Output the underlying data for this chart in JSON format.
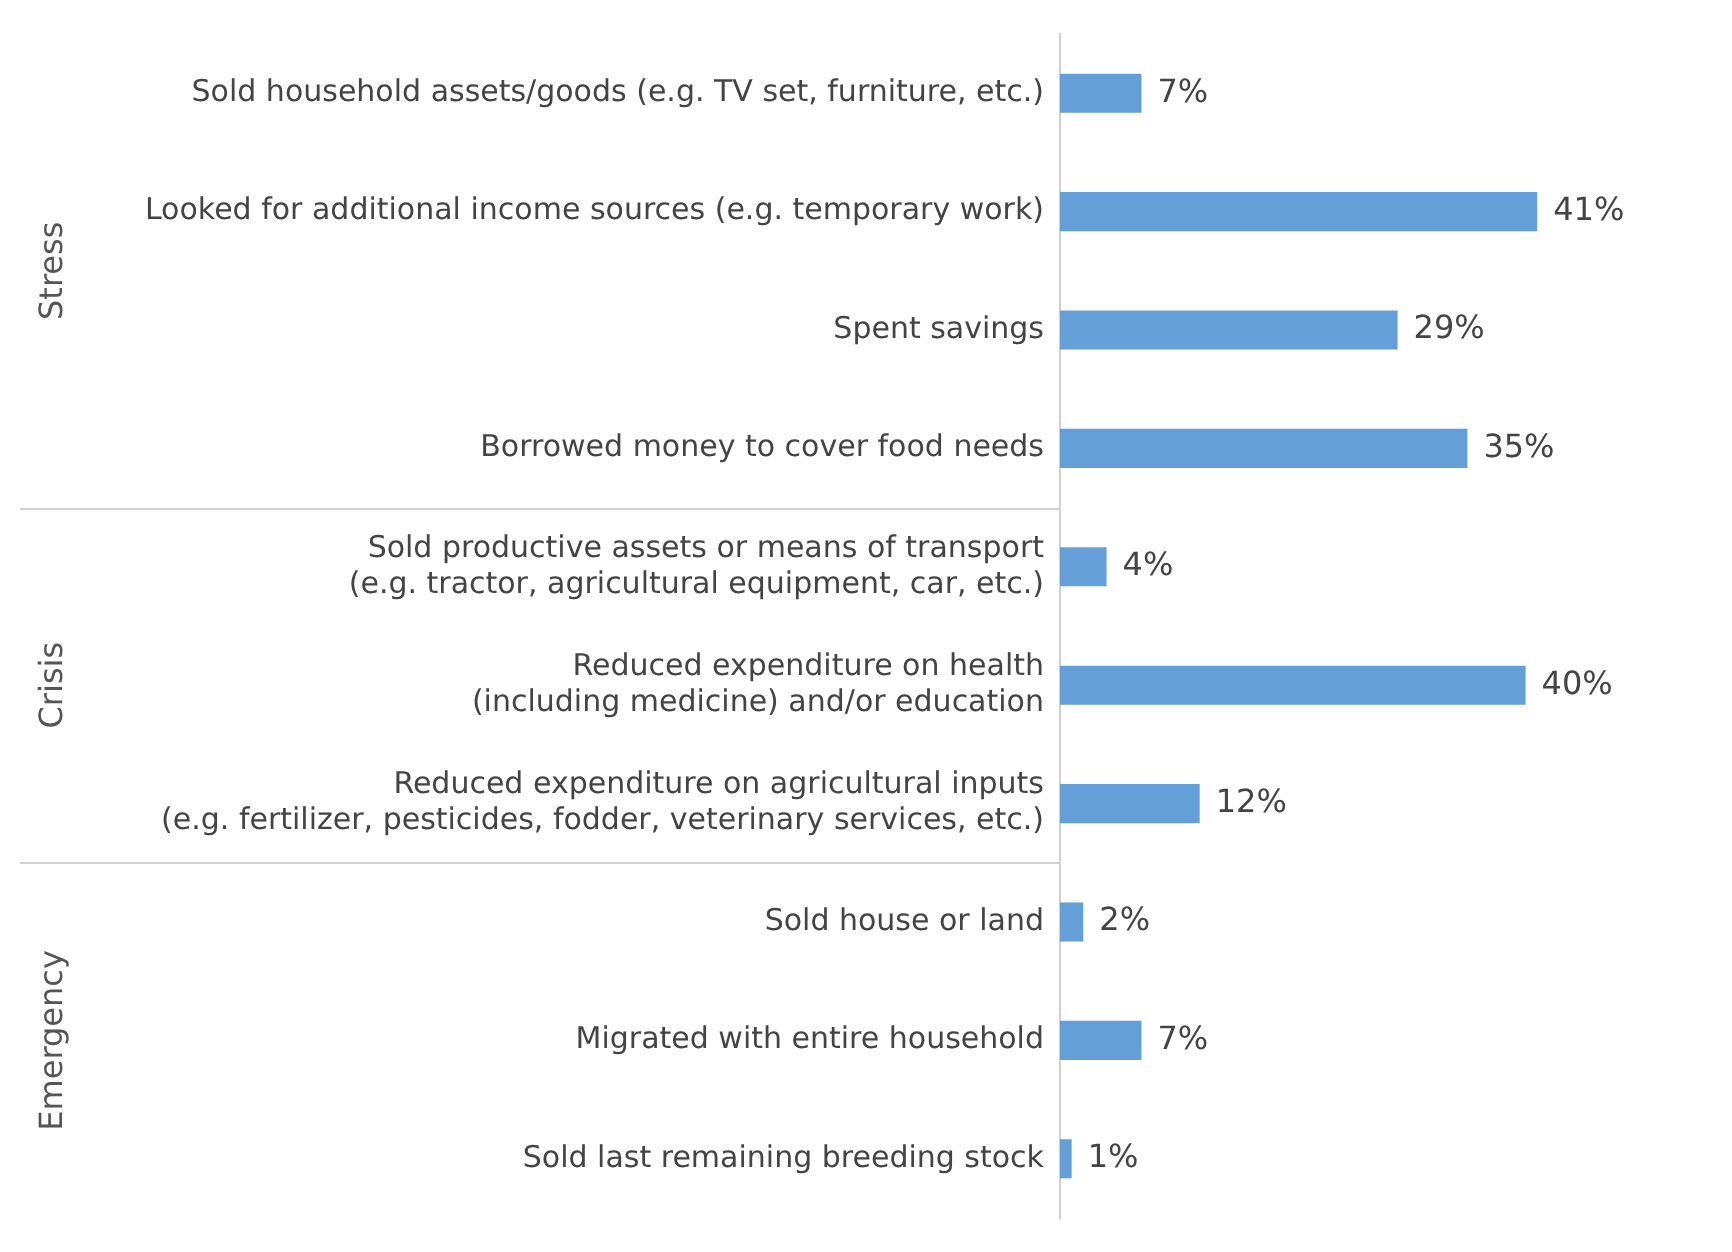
{
  "chart_data": {
    "type": "bar",
    "orientation": "horizontal",
    "categories": [
      "Sold household assets/goods (e.g. TV set, furniture, etc.)",
      "Looked for additional income sources (e.g. temporary work)",
      "Spent savings",
      "Borrowed money to cover food needs",
      "Sold productive assets or means of transport\n(e.g. tractor, agricultural equipment, car, etc.)",
      "Reduced expenditure on health\n(including medicine) and/or education",
      "Reduced expenditure on agricultural inputs\n(e.g. fertilizer, pesticides, fodder, veterinary services, etc.)",
      "Sold house or land",
      "Migrated with entire household",
      "Sold last remaining breeding stock"
    ],
    "series": [
      {
        "color": "#659fd8",
        "values": [
          7,
          41,
          29,
          35,
          null,
          null,
          null,
          null,
          null,
          null
        ],
        "value_labels": [
          "7%",
          "41%",
          "29%",
          "35%",
          null,
          null,
          null,
          null,
          null,
          null
        ]
      },
      {
        "color": "#659fd8",
        "values": [
          null,
          null,
          null,
          null,
          4,
          40,
          12,
          null,
          null,
          null
        ],
        "value_labels": [
          null,
          null,
          null,
          null,
          "4%",
          "40%",
          "12%",
          null,
          null,
          null
        ]
      },
      {
        "color": "#659fd8",
        "values": [
          null,
          null,
          null,
          null,
          null,
          null,
          null,
          2,
          7,
          1
        ],
        "value_labels": [
          null,
          null,
          null,
          null,
          null,
          null,
          null,
          "2%",
          "7%",
          "1%"
        ]
      }
    ],
    "annotations": [
      "Stress",
      "Crisis",
      "Emergency"
    ],
    "grid": false,
    "legend": false
  }
}
